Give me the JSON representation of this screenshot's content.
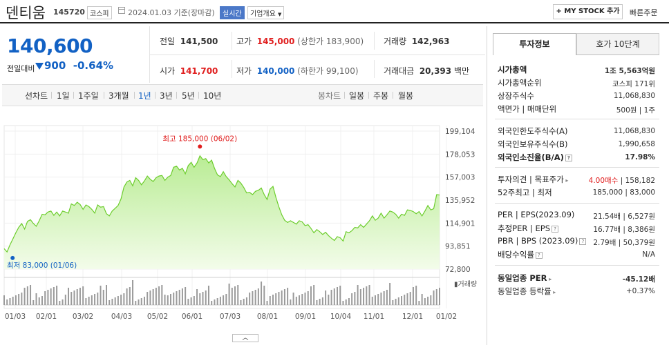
{
  "header": {
    "name": "덴티움",
    "code": "145720",
    "market": "코스피",
    "date": "2024.01.03",
    "date_suffix": "기준(장마감)",
    "live_badge": "실시간",
    "overview_label": "기업개요",
    "mystock_label": "MY STOCK 추가",
    "quick_order_label": "빠른주문"
  },
  "price": {
    "current": "140,600",
    "change_label": "전일대비",
    "change_amount": "900",
    "change_pct": "-0.64%",
    "prev_close_label": "전일",
    "prev_close": "141,500",
    "high_label": "고가",
    "high": "145,000",
    "upper_limit": "(상한가 183,900)",
    "volume_label": "거래량",
    "volume": "142,963",
    "open_label": "시가",
    "open": "141,700",
    "low_label": "저가",
    "low": "140,000",
    "lower_limit": "(하한가 99,100)",
    "amount_label": "거래대금",
    "amount": "20,393",
    "amount_unit": "백만"
  },
  "period_bar": {
    "line_chart_label": "선차트",
    "periods": [
      "1일",
      "1주일",
      "3개월",
      "1년",
      "3년",
      "5년",
      "10년"
    ],
    "selected": "1년",
    "candle_label": "봉차트",
    "candles": [
      "일봉",
      "주봉",
      "월봉"
    ]
  },
  "chart_data": {
    "type": "area",
    "series": [
      {
        "name": "",
        "values": [
          91500,
          88500,
          95000,
          100500,
          106000,
          111000,
          114500,
          109500,
          116500,
          118000,
          114500,
          112000,
          117000,
          123000,
          122500,
          125000,
          126000,
          122000,
          125000,
          121500,
          126000,
          125000,
          124000,
          132500,
          131000,
          134000,
          132000,
          127500,
          131500,
          130000,
          127500,
          124000,
          131500,
          129500,
          130000,
          123500,
          121500,
          126000,
          128500,
          131000,
          137000,
          148000,
          152500,
          154000,
          149000,
          156500,
          154000,
          150000,
          153500,
          158000,
          155000,
          153000,
          156500,
          158000,
          158500,
          154000,
          157000,
          158500,
          166000,
          167000,
          163500,
          165000,
          160000,
          167500,
          170500,
          166000,
          170000,
          176500,
          173000,
          174000,
          170000,
          172500,
          165000,
          159000,
          157500,
          162000,
          157500,
          154500,
          151000,
          148000,
          154000,
          151500,
          147500,
          142500,
          143000,
          141000,
          144000,
          145000,
          147000,
          141000,
          136500,
          146000,
          148500,
          138500,
          130000,
          122500,
          117500,
          115500,
          117000,
          115500,
          114000,
          117000,
          116000,
          112500,
          113500,
          110000,
          106000,
          109000,
          107000,
          104500,
          106500,
          103500,
          101000,
          99000,
          102500,
          101500,
          98500,
          107000,
          106000,
          108000,
          111000,
          110500,
          113500,
          111000,
          114000,
          117000,
          121500,
          117500,
          119500,
          124000,
          119500,
          122500,
          126000,
          125000,
          123000,
          119500,
          123000,
          122000,
          127000,
          126500,
          125500,
          123500,
          125500,
          121500,
          126000,
          131000,
          127000,
          128000,
          141000,
          140600
        ]
      }
    ],
    "x_ticks": [
      "01/03",
      "02/01",
      "03/02",
      "04/03",
      "05/02",
      "06/01",
      "07/03",
      "08/01",
      "09/01",
      "10/04",
      "11/01",
      "12/01",
      "01/02"
    ],
    "y_ticks": [
      "199,104",
      "178,053",
      "157,003",
      "135,952",
      "114,901",
      "93,851",
      "72,800"
    ],
    "ylim": [
      72800,
      199104
    ],
    "max_label": "최고 185,000 (06/02)",
    "min_label": "최저 83,000 (01/06)",
    "max_value": 185000,
    "min_value": 83000,
    "volume_label": "거래량",
    "grid": true
  },
  "right_panel": {
    "tab_active": "투자정보",
    "tab_other": "호가 10단계",
    "rows": [
      {
        "label": "시가총액",
        "value": "1조 5,563억원",
        "bold": true
      },
      {
        "label": "시가총액순위",
        "value": "코스피 171위"
      },
      {
        "label": "상장주식수",
        "value": "11,068,830"
      },
      {
        "label": "액면가 | 매매단위",
        "value": "500원 | 1주"
      },
      {
        "label": "외국인한도주식수(A)",
        "value": "11,068,830"
      },
      {
        "label": "외국인보유주식수(B)",
        "value": "1,990,658"
      },
      {
        "label": "외국인소진율(B/A)",
        "value": "17.98%",
        "bold": true
      },
      {
        "label": "투자의견 | 목표주가",
        "value_red": "4.00매수",
        "value": "| 158,182"
      },
      {
        "label": "52주최고 | 최저",
        "value": "185,000 | 83,000"
      },
      {
        "label": "PER | EPS(2023.09)",
        "value": "21.54배 | 6,527원"
      },
      {
        "label": "추정PER | EPS",
        "value": "16.77배 | 8,386원"
      },
      {
        "label": "PBR | BPS (2023.09)",
        "value": "2.79배 | 50,379원"
      },
      {
        "label": "배당수익률",
        "value": "N/A"
      },
      {
        "label": "동일업종 PER",
        "value": "-45.12배",
        "bold": true
      },
      {
        "label": "동일업종 등락률",
        "value": "+0.37%",
        "red": true
      }
    ]
  }
}
